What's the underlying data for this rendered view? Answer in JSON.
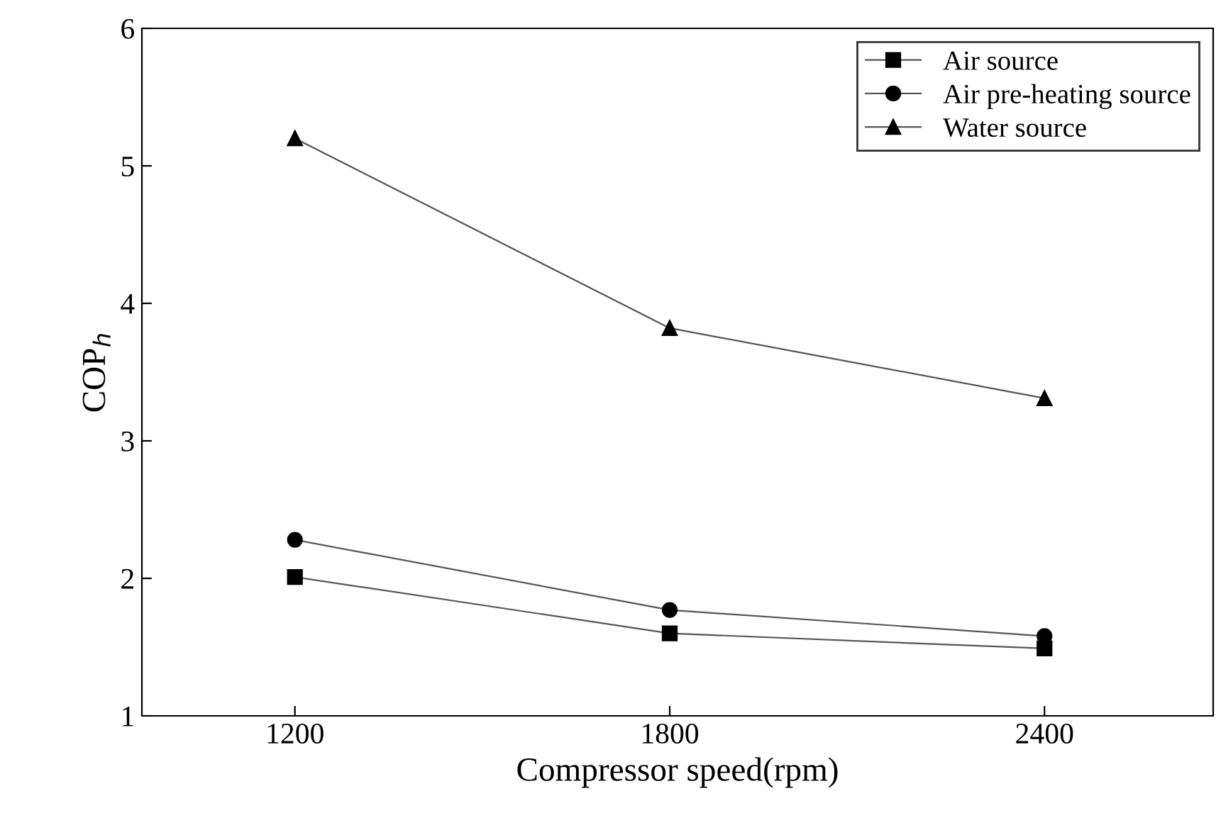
{
  "chart_data": {
    "type": "line",
    "xlabel": "Compressor speed(rpm)",
    "ylabel": "COP$_{h}$",
    "x": [
      1200,
      1800,
      2400
    ],
    "xlim": [
      955,
      2670
    ],
    "xticks": [
      1200,
      1800,
      2400
    ],
    "ylim": [
      1,
      6
    ],
    "yticks": [
      1,
      2,
      3,
      4,
      5,
      6
    ],
    "series": [
      {
        "name": "Air source",
        "color": "#000000",
        "marker": "square",
        "values": [
          2.01,
          1.6,
          1.49
        ]
      },
      {
        "name": "Air pre-heating source",
        "color": "#000000",
        "marker": "circle",
        "values": [
          2.28,
          1.77,
          1.58
        ]
      },
      {
        "name": "Water source",
        "color": "#000000",
        "marker": "triangle",
        "values": [
          5.2,
          3.82,
          3.31
        ]
      }
    ],
    "grid": false,
    "legend": "top right",
    "line_style": "solid"
  }
}
